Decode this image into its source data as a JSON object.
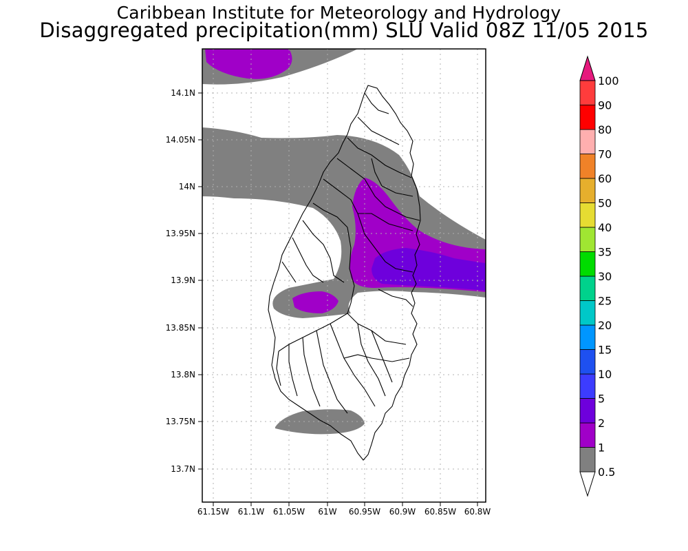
{
  "title_line1": "Caribbean Institute for Meteorology and Hydrology",
  "title_line2": "Disaggregated precipitation(mm) SLU Valid 08Z 11/05 2015",
  "map": {
    "lon_ticks": [
      "61.15W",
      "61.1W",
      "61.05W",
      "61W",
      "60.95W",
      "60.9W",
      "60.85W",
      "60.8W"
    ],
    "lat_ticks": [
      "14.1N",
      "14.05N",
      "14N",
      "13.95N",
      "13.9N",
      "13.85N",
      "13.8N",
      "13.75N",
      "13.7N"
    ],
    "colors": {
      "gray_0_5_1": "#808080",
      "purple_1_2": "#a000c8",
      "violet_2_5": "#6e00dc"
    }
  },
  "colorbar": {
    "labels": [
      "0.5",
      "1",
      "2",
      "5",
      "10",
      "15",
      "20",
      "25",
      "30",
      "35",
      "40",
      "50",
      "60",
      "70",
      "80",
      "90",
      "100"
    ],
    "colors": [
      "#808080",
      "#a000c8",
      "#6e00dc",
      "#3c3cff",
      "#1e50f0",
      "#0096ff",
      "#00c8c8",
      "#00d28c",
      "#00dc00",
      "#a0e632",
      "#e6dc32",
      "#e6af2d",
      "#f08228",
      "#ffafaf",
      "#ff0000",
      "#ff3c3c",
      "#e6197d"
    ]
  }
}
